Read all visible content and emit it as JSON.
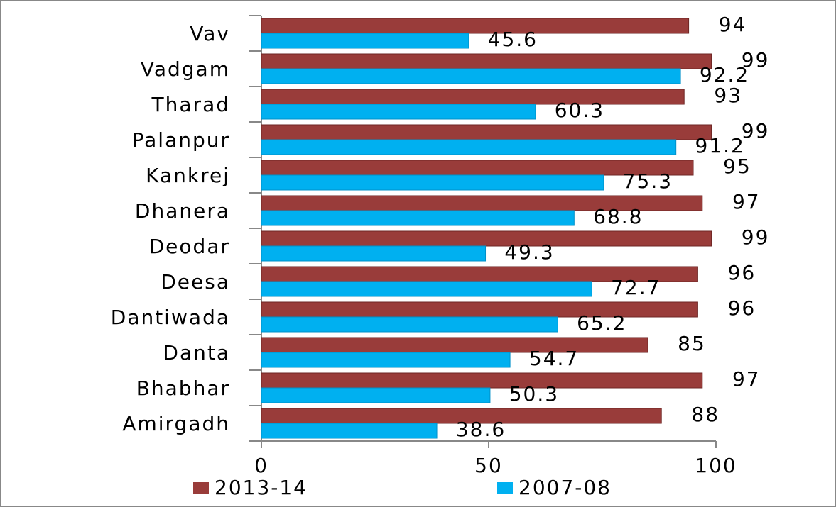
{
  "chart_data": {
    "type": "bar",
    "orientation": "horizontal",
    "categories": [
      "Vav",
      "Vadgam",
      "Tharad",
      "Palanpur",
      "Kankrej",
      "Dhanera",
      "Deodar",
      "Deesa",
      "Dantiwada",
      "Danta",
      "Bhabhar",
      "Amirgadh"
    ],
    "series": [
      {
        "name": "2013-14",
        "color": "#993c3a",
        "values": [
          94,
          99,
          93,
          99,
          95,
          97,
          99,
          96,
          96,
          85,
          97,
          88
        ]
      },
      {
        "name": "2007-08",
        "color": "#00b0f0",
        "values": [
          45.6,
          92.2,
          60.3,
          91.2,
          75.3,
          68.8,
          49.3,
          72.7,
          65.2,
          54.7,
          50.3,
          38.6
        ]
      }
    ],
    "xlim": [
      0,
      100
    ],
    "xticks": [
      0,
      50,
      100
    ],
    "legend": "bottom"
  }
}
